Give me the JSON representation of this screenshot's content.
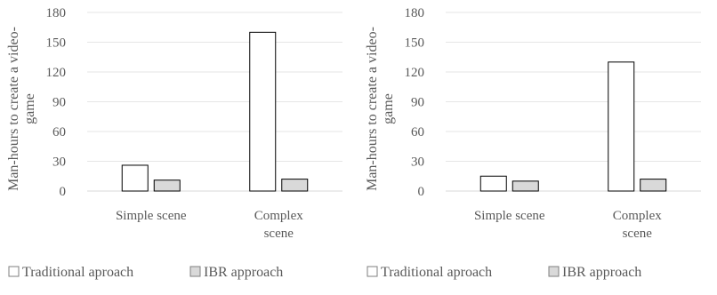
{
  "colors": {
    "traditional_fill": "#ffffff",
    "ibr_fill": "#d9d9d9",
    "bar_stroke": "#000000",
    "grid": "#e6e6e6",
    "text": "#595959"
  },
  "chart_data": [
    {
      "type": "bar",
      "ylabel_lines": [
        "Man-hours to create a video-",
        "game"
      ],
      "ylim": [
        0,
        180
      ],
      "yticks": [
        0,
        30,
        60,
        90,
        120,
        150,
        180
      ],
      "grid": true,
      "legend_position": "bottom",
      "categories": [
        [
          "Simple scene"
        ],
        [
          "Complex",
          "scene"
        ]
      ],
      "series": [
        {
          "name": "Traditional aproach",
          "values": [
            26,
            160
          ]
        },
        {
          "name": "IBR approach",
          "values": [
            11,
            12
          ]
        }
      ]
    },
    {
      "type": "bar",
      "ylabel_lines": [
        "Man-hours to create a video-",
        "game"
      ],
      "ylim": [
        0,
        180
      ],
      "yticks": [
        0,
        30,
        60,
        90,
        120,
        150,
        180
      ],
      "grid": true,
      "legend_position": "bottom",
      "categories": [
        [
          "Simple scene"
        ],
        [
          "Complex",
          "scene"
        ]
      ],
      "series": [
        {
          "name": "Traditional aproach",
          "values": [
            15,
            130
          ]
        },
        {
          "name": "IBR approach",
          "values": [
            10,
            12
          ]
        }
      ]
    }
  ]
}
